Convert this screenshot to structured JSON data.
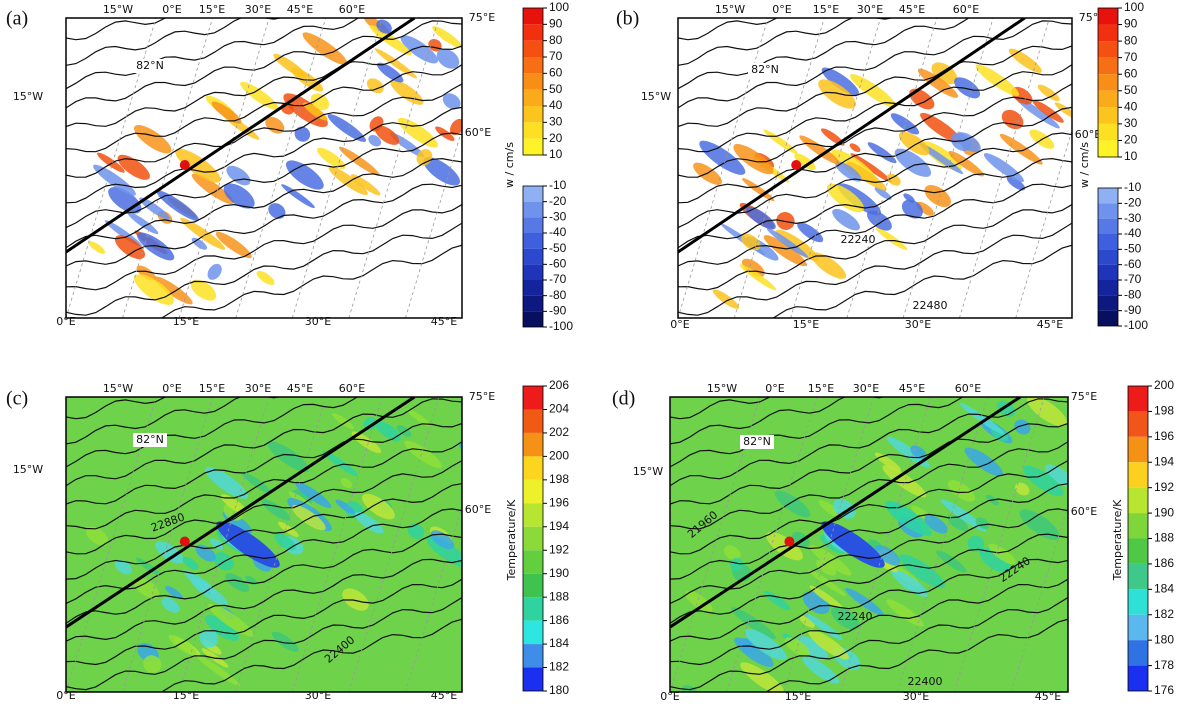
{
  "panels": [
    {
      "label": "(a)",
      "top_lon_labels": [
        "15°W",
        "0°E",
        "15°E",
        "30°E",
        "45°E",
        "60°E"
      ],
      "corner_label": "75°E",
      "left_label": "15°W",
      "right_label": "60°E",
      "lat_label": "82°N",
      "bottom_lon_labels": [
        "0°E",
        "15°E",
        "30°E",
        "45°E"
      ],
      "contour_labels": [],
      "colorbar": {
        "title": "w / cm/s",
        "parts": [
          {
            "lim": [
              10,
              100
            ],
            "ticks": [
              100,
              90,
              80,
              70,
              60,
              50,
              40,
              30,
              20,
              10
            ],
            "colors": [
              "#e8120c",
              "#f2300f",
              "#f54f12",
              "#f76e15",
              "#f98e16",
              "#fbab1a",
              "#fcc51e",
              "#fde022",
              "#fff227"
            ]
          },
          {
            "lim": [
              -100,
              -10
            ],
            "ticks": [
              -10,
              -20,
              -30,
              -40,
              -50,
              -60,
              -70,
              -80,
              -90,
              -100
            ],
            "colors": [
              "#8fb0f2",
              "#6f93ec",
              "#5679e6",
              "#3e5fde",
              "#2c48cf",
              "#1e34b9",
              "#14249d",
              "#0d1880",
              "#080f5e"
            ]
          }
        ]
      }
    },
    {
      "label": "(b)",
      "top_lon_labels": [
        "15°W",
        "0°E",
        "15°E",
        "30°E",
        "45°E",
        "60°E"
      ],
      "corner_label": "75°E",
      "left_label": "15°W",
      "right_label": "60°E",
      "lat_label": "82°N",
      "bottom_lon_labels": [
        "0°E",
        "15°E",
        "30°E",
        "45°E"
      ],
      "contour_labels": [
        "22240",
        "22480"
      ],
      "colorbar": {
        "title": "w / cm/s",
        "parts": [
          {
            "lim": [
              10,
              100
            ],
            "ticks": [
              100,
              90,
              80,
              70,
              60,
              50,
              40,
              30,
              20,
              10
            ],
            "colors": [
              "#e8120c",
              "#f2300f",
              "#f54f12",
              "#f76e15",
              "#f98e16",
              "#fbab1a",
              "#fcc51e",
              "#fde022",
              "#fff227"
            ]
          },
          {
            "lim": [
              -100,
              -10
            ],
            "ticks": [
              -10,
              -20,
              -30,
              -40,
              -50,
              -60,
              -70,
              -80,
              -90,
              -100
            ],
            "colors": [
              "#8fb0f2",
              "#6f93ec",
              "#5679e6",
              "#3e5fde",
              "#2c48cf",
              "#1e34b9",
              "#14249d",
              "#0d1880",
              "#080f5e"
            ]
          }
        ]
      }
    },
    {
      "label": "(c)",
      "top_lon_labels": [
        "15°W",
        "0°E",
        "15°E",
        "30°E",
        "45°E",
        "60°E"
      ],
      "corner_label": "75°E",
      "left_label": "15°W",
      "right_label": "60°E",
      "lat_label": "82°N",
      "bottom_lon_labels": [
        "0°E",
        "15°E",
        "30°E",
        "45°E"
      ],
      "contour_labels": [
        "22880",
        "22400"
      ],
      "colorbar": {
        "title": "Temperature/K",
        "parts": [
          {
            "lim": [
              180,
              206
            ],
            "ticks": [
              206,
              204,
              202,
              200,
              198,
              196,
              194,
              192,
              190,
              188,
              186,
              184,
              182,
              180
            ],
            "colors": [
              "#ee1b1b",
              "#f15a12",
              "#f59216",
              "#fbd51e",
              "#eef02a",
              "#b8e630",
              "#8cd93a",
              "#62cf3f",
              "#3ec34f",
              "#2fd3a0",
              "#2ee6e0",
              "#3d8ee8",
              "#1a2ff0"
            ]
          }
        ]
      }
    },
    {
      "label": "(d)",
      "top_lon_labels": [
        "15°W",
        "0°E",
        "15°E",
        "30°E",
        "45°E",
        "60°E"
      ],
      "corner_label": "75°E",
      "left_label": "15°W",
      "right_label": "60°E",
      "lat_label": "82°N",
      "bottom_lon_labels": [
        "0°E",
        "15°E",
        "30°E",
        "45°E"
      ],
      "contour_labels": [
        "21960",
        "22240",
        "22240",
        "22400"
      ],
      "colorbar": {
        "title": "Temperature/K",
        "parts": [
          {
            "lim": [
              176,
              200
            ],
            "ticks": [
              200,
              198,
              196,
              194,
              192,
              190,
              188,
              186,
              184,
              182,
              180,
              178,
              176
            ],
            "colors": [
              "#ee1b1b",
              "#f2551a",
              "#f59216",
              "#fbd01e",
              "#b8e630",
              "#7fd63b",
              "#4ec845",
              "#3ec98a",
              "#2ee0d6",
              "#5ab8ee",
              "#2e72e4",
              "#1a2ff0"
            ]
          }
        ]
      }
    }
  ]
}
